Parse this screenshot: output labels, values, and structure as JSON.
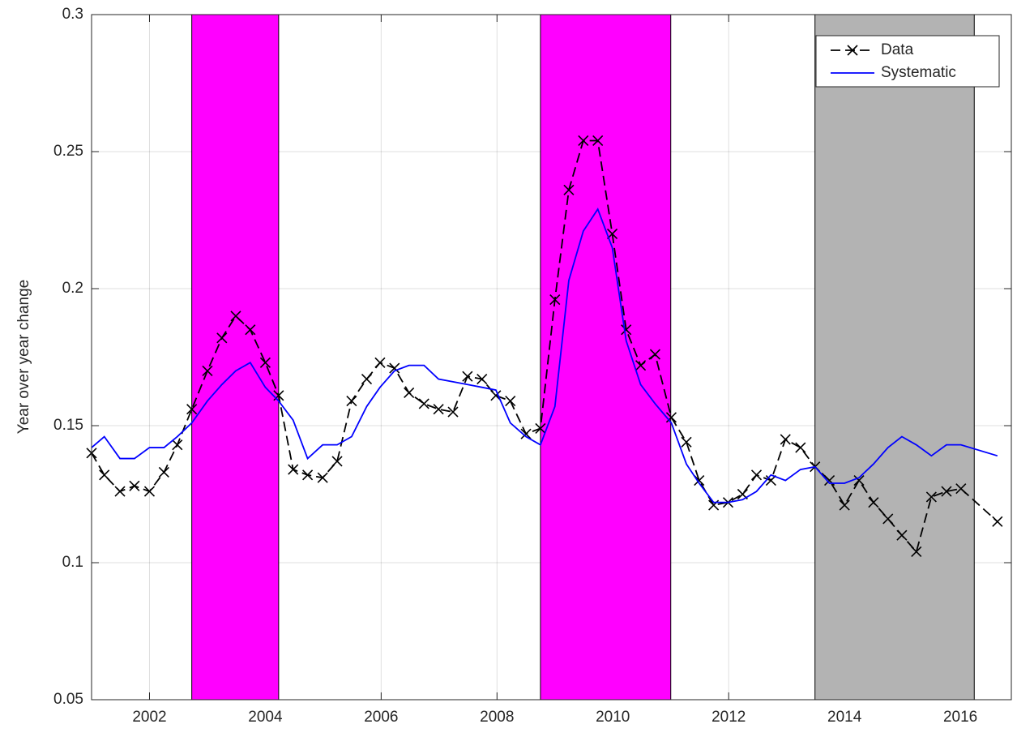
{
  "chart_data": {
    "type": "line",
    "ylabel": "Year over year change",
    "x": [
      2001.0,
      2001.22,
      2001.49,
      2001.74,
      2002.0,
      2002.25,
      2002.48,
      2002.73,
      2003.0,
      2003.25,
      2003.49,
      2003.74,
      2004.0,
      2004.23,
      2004.48,
      2004.73,
      2004.99,
      2005.24,
      2005.49,
      2005.75,
      2005.98,
      2006.23,
      2006.48,
      2006.74,
      2006.99,
      2007.24,
      2007.49,
      2007.74,
      2007.98,
      2008.23,
      2008.5,
      2008.75,
      2009.0,
      2009.24,
      2009.49,
      2009.74,
      2009.99,
      2010.23,
      2010.48,
      2010.73,
      2011.01,
      2011.27,
      2011.49,
      2011.74,
      2011.99,
      2012.24,
      2012.48,
      2012.73,
      2012.98,
      2013.24,
      2013.49,
      2013.74,
      2014.0,
      2014.25,
      2014.5,
      2014.75,
      2014.99,
      2015.24,
      2015.5,
      2015.76,
      2016.01,
      2016.64
    ],
    "series": [
      {
        "name": "Data",
        "color": "#000000",
        "dashed": true,
        "marker": "x",
        "values": [
          0.14,
          0.132,
          0.126,
          0.128,
          0.126,
          0.133,
          0.143,
          0.156,
          0.17,
          0.182,
          0.19,
          0.185,
          0.173,
          0.161,
          0.134,
          0.132,
          0.131,
          0.137,
          0.159,
          0.167,
          0.173,
          0.171,
          0.162,
          0.158,
          0.156,
          0.155,
          0.168,
          0.167,
          0.161,
          0.159,
          0.147,
          0.149,
          0.196,
          0.236,
          0.254,
          0.254,
          0.22,
          0.185,
          0.172,
          0.176,
          0.153,
          0.144,
          0.13,
          0.121,
          0.122,
          0.125,
          0.132,
          0.13,
          0.145,
          0.142,
          0.135,
          0.13,
          0.121,
          0.13,
          0.122,
          0.116,
          0.11,
          0.104,
          0.124,
          0.126,
          0.127,
          0.115
        ]
      },
      {
        "name": "Systematic",
        "color": "#0000ff",
        "dashed": false,
        "marker": null,
        "values": [
          0.142,
          0.146,
          0.138,
          0.138,
          0.142,
          0.142,
          0.146,
          0.151,
          0.159,
          0.165,
          0.17,
          0.173,
          0.164,
          0.159,
          0.152,
          0.138,
          0.143,
          0.143,
          0.146,
          0.157,
          0.164,
          0.17,
          0.172,
          0.172,
          0.167,
          0.166,
          0.165,
          0.164,
          0.163,
          0.151,
          0.146,
          0.143,
          0.157,
          0.203,
          0.221,
          0.229,
          0.215,
          0.181,
          0.165,
          0.158,
          0.151,
          0.136,
          0.129,
          0.122,
          0.122,
          0.123,
          0.126,
          0.132,
          0.13,
          0.134,
          0.135,
          0.129,
          0.129,
          0.131,
          0.136,
          0.142,
          0.146,
          0.143,
          0.139,
          0.143,
          0.143,
          0.139
        ]
      }
    ],
    "shaded_regions": [
      {
        "start": 2002.73,
        "end": 2004.23,
        "color": "#ff00ff"
      },
      {
        "start": 2008.75,
        "end": 2011.0,
        "color": "#ff00ff"
      },
      {
        "start": 2013.49,
        "end": 2016.24,
        "color": "#b3b3b3"
      }
    ],
    "xlim": [
      2001.0,
      2016.88
    ],
    "xticks": [
      2002,
      2004,
      2006,
      2008,
      2010,
      2012,
      2014,
      2016
    ],
    "ylim": [
      0.05,
      0.3
    ],
    "yticks": [
      0.05,
      0.1,
      0.15,
      0.2,
      0.25,
      0.3
    ],
    "grid": true,
    "legend": "northeast"
  }
}
